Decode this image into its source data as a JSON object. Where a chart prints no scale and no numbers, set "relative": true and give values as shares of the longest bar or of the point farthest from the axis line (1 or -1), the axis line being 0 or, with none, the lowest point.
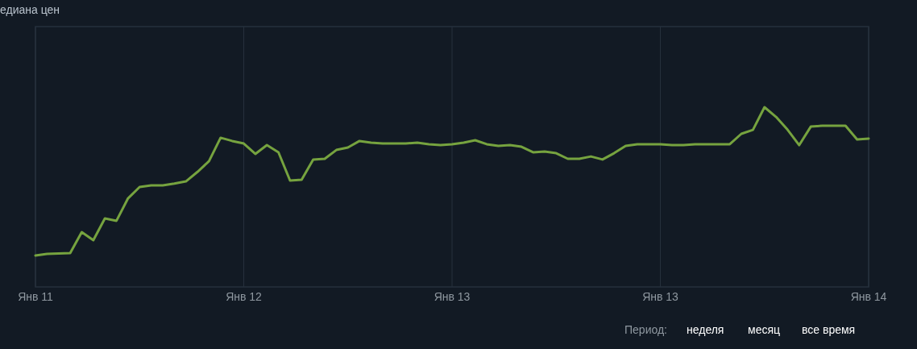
{
  "chart_data": {
    "type": "line",
    "title": "едиана цен",
    "relative": true,
    "categories": [
      "Янв 11",
      null,
      null,
      null,
      null,
      null,
      null,
      null,
      null,
      null,
      null,
      null,
      null,
      null,
      null,
      null,
      null,
      null,
      "Янв 12",
      null,
      null,
      null,
      null,
      null,
      null,
      null,
      null,
      null,
      null,
      null,
      null,
      null,
      null,
      null,
      null,
      null,
      "Янв 13",
      null,
      null,
      null,
      null,
      null,
      null,
      null,
      null,
      null,
      null,
      null,
      null,
      null,
      null,
      null,
      null,
      null,
      "Янв 13",
      null,
      null,
      null,
      null,
      null,
      null,
      null,
      null,
      null,
      null,
      null,
      null,
      null,
      null,
      null,
      null,
      null,
      "Янв 14"
    ],
    "series": [
      {
        "color": "#76a33f",
        "values": [
          0.175,
          0.184,
          0.186,
          0.188,
          0.305,
          0.26,
          0.381,
          0.368,
          0.493,
          0.556,
          0.565,
          0.565,
          0.575,
          0.587,
          0.64,
          0.7,
          0.83,
          0.812,
          0.798,
          0.74,
          0.789,
          0.749,
          0.592,
          0.596,
          0.709,
          0.713,
          0.762,
          0.776,
          0.812,
          0.803,
          0.798,
          0.798,
          0.798,
          0.803,
          0.794,
          0.789,
          0.794,
          0.803,
          0.816,
          0.794,
          0.785,
          0.789,
          0.78,
          0.749,
          0.753,
          0.744,
          0.713,
          0.713,
          0.726,
          0.709,
          0.744,
          0.785,
          0.794,
          0.794,
          0.794,
          0.789,
          0.789,
          0.794,
          0.794,
          0.794,
          0.794,
          0.852,
          0.874,
          1,
          0.946,
          0.874,
          0.789,
          0.892,
          0.897,
          0.897,
          0.897,
          0.821,
          0.825
        ]
      }
    ],
    "grid": "x",
    "marker": "none",
    "line_style": "solid",
    "annotations": [
      "Период:",
      "неделя",
      "месяц",
      "все время"
    ]
  }
}
